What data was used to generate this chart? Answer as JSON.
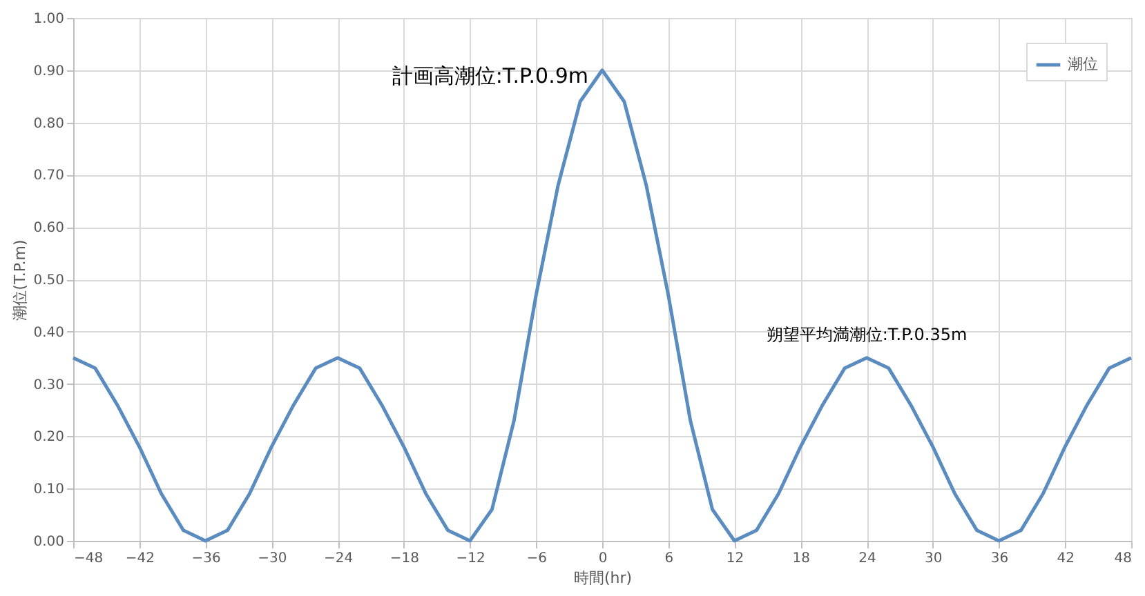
{
  "chart_data": {
    "type": "line",
    "xlabel": "時間(hr)",
    "ylabel": "潮位(T.P.m)",
    "x": [
      -48,
      -46,
      -44,
      -42,
      -40,
      -38,
      -36,
      -34,
      -32,
      -30,
      -28,
      -26,
      -24,
      -22,
      -20,
      -18,
      -16,
      -14,
      -12,
      -10,
      -8,
      -6,
      -4,
      -2,
      0,
      2,
      4,
      6,
      8,
      10,
      12,
      14,
      16,
      18,
      20,
      22,
      24,
      26,
      28,
      30,
      32,
      34,
      36,
      38,
      40,
      42,
      44,
      46,
      48
    ],
    "series": [
      {
        "name": "潮位",
        "color": "#5b8cc0",
        "values": [
          0.35,
          0.33,
          0.26,
          0.18,
          0.09,
          0.02,
          0,
          0.02,
          0.09,
          0.18,
          0.26,
          0.33,
          0.35,
          0.33,
          0.26,
          0.18,
          0.09,
          0.02,
          0,
          0.06,
          0.23,
          0.47,
          0.68,
          0.84,
          0.9,
          0.84,
          0.68,
          0.47,
          0.23,
          0.06,
          0,
          0.02,
          0.09,
          0.18,
          0.26,
          0.33,
          0.35,
          0.33,
          0.26,
          0.18,
          0.09,
          0.02,
          0,
          0.02,
          0.09,
          0.18,
          0.26,
          0.33,
          0.35
        ]
      }
    ],
    "xlim": [
      -48,
      48
    ],
    "xticks": [
      -48,
      -42,
      -36,
      -30,
      -24,
      -18,
      -12,
      -6,
      0,
      6,
      12,
      18,
      24,
      30,
      36,
      42,
      48
    ],
    "ylim": [
      0,
      1
    ],
    "yticks": [
      {
        "value": 0,
        "label": "0.00"
      },
      {
        "value": 0.1,
        "label": "0.10"
      },
      {
        "value": 0.2,
        "label": "0.20"
      },
      {
        "value": 0.3,
        "label": "0.30"
      },
      {
        "value": 0.4,
        "label": "0.40"
      },
      {
        "value": 0.5,
        "label": "0.50"
      },
      {
        "value": 0.6,
        "label": "0.60"
      },
      {
        "value": 0.7,
        "label": "0.70"
      },
      {
        "value": 0.8,
        "label": "0.80"
      },
      {
        "value": 0.9,
        "label": "0.90"
      },
      {
        "value": 1,
        "label": "1.00"
      }
    ],
    "annotations": [
      {
        "text": "計画高潮位:T.P.0.9m",
        "x": 0,
        "y": 0.9
      },
      {
        "text": "朔望平均満潮位:T.P.0.35m",
        "x": 24,
        "y": 0.35
      }
    ],
    "grid": true,
    "legend": "top right",
    "line_style": "solid",
    "marker": "none"
  }
}
